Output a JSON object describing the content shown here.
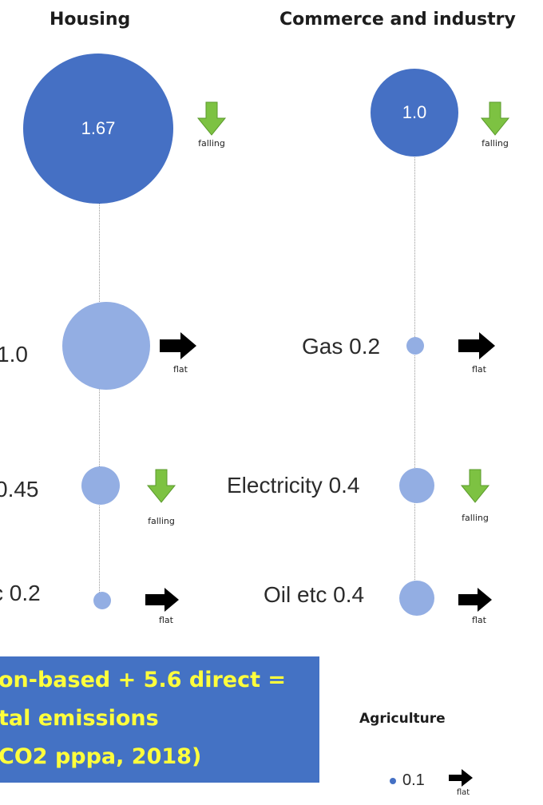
{
  "columns": [
    {
      "title": "Housing",
      "total": {
        "value": "1.67",
        "trend": "falling"
      },
      "rows": [
        {
          "label": "1.0",
          "trend": "flat"
        },
        {
          "label": "0.45",
          "trend": "falling"
        },
        {
          "label": "c  0.2",
          "trend": "flat"
        }
      ]
    },
    {
      "title": "Commerce and industry",
      "total": {
        "value": "1.0",
        "trend": "falling"
      },
      "rows": [
        {
          "label": "Gas 0.2",
          "trend": "flat"
        },
        {
          "label": "Electricity 0.4",
          "trend": "falling"
        },
        {
          "label": "Oil etc 0.4",
          "trend": "flat"
        }
      ]
    }
  ],
  "banner": {
    "lines": [
      "on-based + 5.6 direct =",
      "tal emissions",
      "CO2 pppa, 2018)"
    ]
  },
  "agriculture": {
    "title": "Agriculture",
    "value": "0.1",
    "trend": "flat"
  },
  "colors": {
    "total_bubble": "#4570c4",
    "sub_bubble": "#93aee3",
    "falling_arrow": "#7dc242",
    "flat_arrow": "#000000",
    "banner_bg": "#4472c4",
    "banner_text": "#ffff3c"
  }
}
